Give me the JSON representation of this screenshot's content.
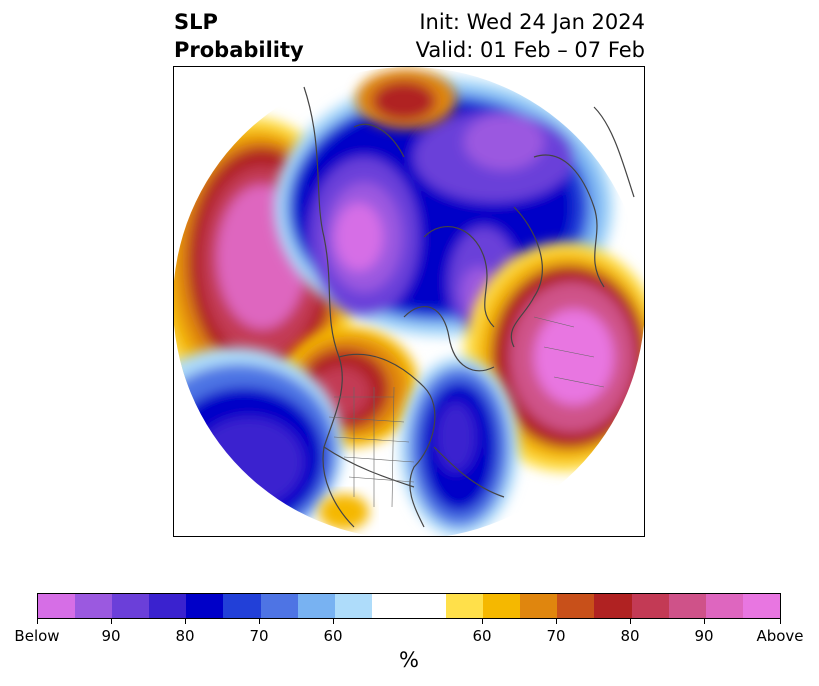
{
  "title": {
    "left_line1": "SLP",
    "left_line2": "Probability",
    "right_line1": "Init: Wed 24 Jan 2024",
    "right_line2": "Valid: 01 Feb – 07 Feb"
  },
  "map": {
    "projection": "north-polar-stereographic",
    "regions": [
      {
        "name": "northeast-pacific-alaska-high",
        "category": "above",
        "peak": "90"
      },
      {
        "name": "canada-arctic-low",
        "category": "below",
        "peak": "Below"
      },
      {
        "name": "greenland-arctic-low",
        "category": "below",
        "peak": "90"
      },
      {
        "name": "barents-arctic-low",
        "category": "below",
        "peak": "90"
      },
      {
        "name": "europe-north-atlantic-high",
        "category": "above",
        "peak": "Above"
      },
      {
        "name": "central-us-high",
        "category": "above",
        "peak": "80"
      },
      {
        "name": "north-pacific-low",
        "category": "below",
        "peak": "80"
      },
      {
        "name": "western-atlantic-low",
        "category": "below",
        "peak": "80"
      },
      {
        "name": "siberia-high",
        "category": "above",
        "peak": "80"
      }
    ]
  },
  "colorbar": {
    "colors": [
      "#d66ee6",
      "#9b59e0",
      "#6b3fd9",
      "#3a22cf",
      "#0000c8",
      "#2240d8",
      "#4e74e4",
      "#78b2f2",
      "#aedcfa",
      "#ffffff",
      "#ffe04a",
      "#f5b800",
      "#e0860e",
      "#c8501a",
      "#b02222",
      "#c33a55",
      "#cf5289",
      "#de66bf",
      "#e876e1"
    ],
    "tick_labels": [
      "Below",
      "90",
      "80",
      "70",
      "60",
      "60",
      "70",
      "80",
      "90",
      "Above"
    ],
    "unit": "%"
  }
}
